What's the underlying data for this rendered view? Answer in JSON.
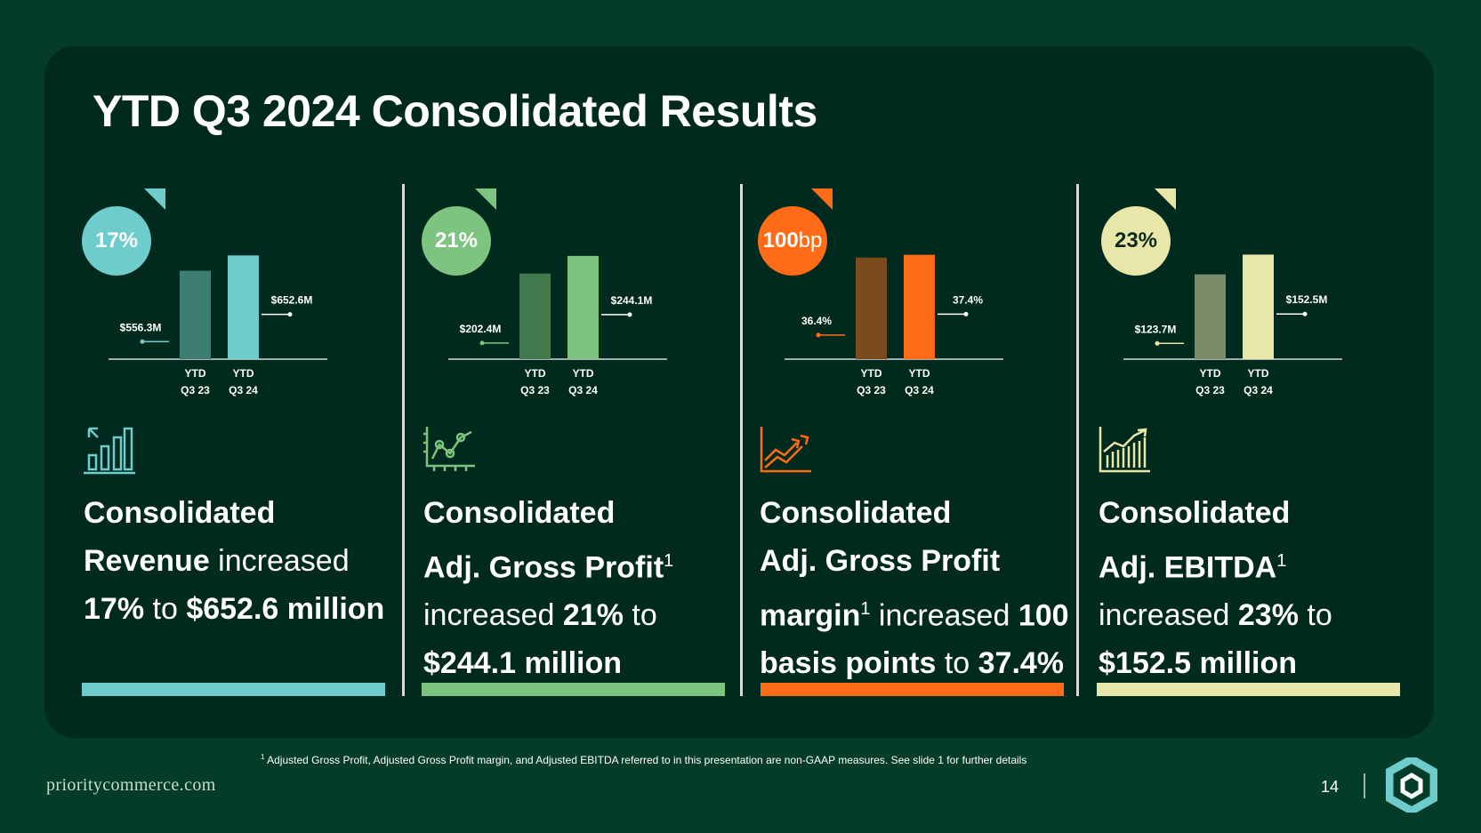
{
  "slide": {
    "title": "YTD Q3 2024 Consolidated Results",
    "footnote_mark": "1",
    "footnote": "Adjusted Gross Profit, Adjusted Gross Profit margin, and Adjusted EBITDA referred to in this presentation are non-GAAP measures. See slide 1 for further details",
    "website": "prioritycommerce.com",
    "page_number": "14"
  },
  "cards": [
    {
      "badge": "17%",
      "badge_color": "#6ecccc",
      "icon": "bar-chart-up-icon",
      "desc_a": "Consolidated",
      "desc_b": "Revenue",
      "desc_c": " increased ",
      "desc_d": "17%",
      "desc_e": " to ",
      "desc_f": "$652.6 million",
      "accent": "#6ecccc"
    },
    {
      "badge": "21%",
      "badge_color": "#7cc47f",
      "icon": "line-chart-points-icon",
      "desc_a": "Consolidated",
      "desc_b": "Adj. Gross Profit",
      "sup": "1",
      "desc_c": "increased ",
      "desc_d": "21%",
      "desc_e": " to",
      "desc_f": "$244.1 million",
      "accent": "#7cc47f"
    },
    {
      "badge_num": "100",
      "badge_unit": "bp",
      "badge_color": "#ff6b16",
      "icon": "trend-up-icon",
      "desc_a": "Consolidated",
      "desc_b": "Adj. Gross Profit",
      "desc_c": "margin",
      "sup": "1",
      "desc_d": " increased ",
      "desc_e": "100",
      "desc_f": "basis points",
      "desc_g": " to ",
      "desc_h": "37.4%",
      "accent": "#ff6b16"
    },
    {
      "badge": "23%",
      "badge_color": "#e8e7a9",
      "icon": "column-chart-up-icon",
      "desc_a": "Consolidated",
      "desc_b": "Adj. EBITDA",
      "sup": "1",
      "desc_c": "increased ",
      "desc_d": "23%",
      "desc_e": " to",
      "desc_f": "$152.5 million",
      "accent": "#e8e7a9"
    }
  ],
  "chart_data": [
    {
      "type": "bar",
      "categories": [
        "YTD Q3 23",
        "YTD Q3 24"
      ],
      "values": [
        556.3,
        652.6
      ],
      "labels": [
        "$556.3M",
        "$652.6M"
      ],
      "unit": "$M",
      "ylim": [
        0,
        660
      ],
      "colors": [
        "#3e7d72",
        "#6ecccc"
      ]
    },
    {
      "type": "bar",
      "categories": [
        "YTD Q3 23",
        "YTD Q3 24"
      ],
      "values": [
        202.4,
        244.1
      ],
      "labels": [
        "$202.4M",
        "$244.1M"
      ],
      "unit": "$M",
      "ylim": [
        0,
        248
      ],
      "colors": [
        "#427a4d",
        "#7cc47f"
      ]
    },
    {
      "type": "bar",
      "categories": [
        "YTD Q3 23",
        "YTD Q3 24"
      ],
      "values": [
        36.4,
        37.4
      ],
      "labels": [
        "36.4%",
        "37.4%"
      ],
      "unit": "%",
      "ylim": [
        0,
        37.6
      ],
      "colors": [
        "#7b4b1e",
        "#ff6b16"
      ]
    },
    {
      "type": "bar",
      "categories": [
        "YTD Q3 23",
        "YTD Q3 24"
      ],
      "values": [
        123.7,
        152.5
      ],
      "labels": [
        "$123.7M",
        "$152.5M"
      ],
      "unit": "$M",
      "ylim": [
        0,
        153
      ],
      "colors": [
        "#7a8c69",
        "#e8e7a9"
      ]
    }
  ]
}
